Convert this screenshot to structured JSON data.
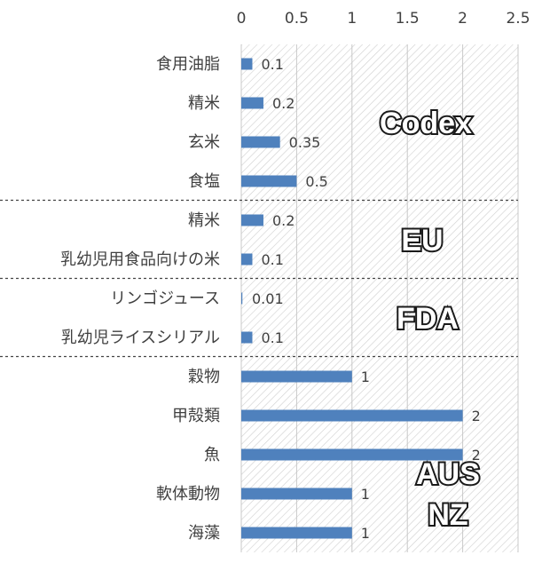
{
  "chart_data": {
    "type": "bar",
    "orientation": "horizontal",
    "x_ticks": [
      "0",
      "0.5",
      "1",
      "1.5",
      "2",
      "2.5"
    ],
    "xlim": [
      0,
      2.5
    ],
    "x_axis_position": "top",
    "grid": true,
    "bar_color": "#4f81bd",
    "groups": [
      {
        "name": "Codex",
        "items": [
          {
            "category": "食用油脂",
            "value": 0.1,
            "label": "0.1"
          },
          {
            "category": "精米",
            "value": 0.2,
            "label": "0.2"
          },
          {
            "category": "玄米",
            "value": 0.35,
            "label": "0.35"
          },
          {
            "category": "食塩",
            "value": 0.5,
            "label": "0.5"
          }
        ]
      },
      {
        "name": "EU",
        "items": [
          {
            "category": "精米",
            "value": 0.2,
            "label": "0.2"
          },
          {
            "category": "乳幼児用食品向けの米",
            "value": 0.1,
            "label": "0.1"
          }
        ]
      },
      {
        "name": "FDA",
        "items": [
          {
            "category": "リンゴジュース",
            "value": 0.01,
            "label": "0.01"
          },
          {
            "category": "乳幼児ライスシリアル",
            "value": 0.1,
            "label": "0.1"
          }
        ]
      },
      {
        "name": "AUS NZ",
        "name_lines": [
          "AUS",
          "NZ"
        ],
        "items": [
          {
            "category": "穀物",
            "value": 1,
            "label": "1"
          },
          {
            "category": "甲殻類",
            "value": 2,
            "label": "2"
          },
          {
            "category": "魚",
            "value": 2,
            "label": "2"
          },
          {
            "category": "軟体動物",
            "value": 1,
            "label": "1"
          },
          {
            "category": "海藻",
            "value": 1,
            "label": "1"
          }
        ]
      }
    ]
  }
}
